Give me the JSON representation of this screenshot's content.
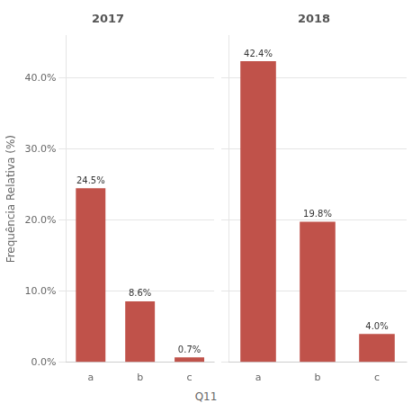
{
  "chart_data": [
    {
      "type": "bar",
      "title": "2017",
      "categories": [
        "a",
        "b",
        "c"
      ],
      "values": [
        24.5,
        8.6,
        0.7
      ],
      "value_labels": [
        "24.5%",
        "8.6%",
        "0.7%"
      ],
      "data_labels": true,
      "color": "#c0524a",
      "ylabel": "Frequência Relativa (%)",
      "xlabel": "Q11",
      "ylim": [
        0,
        46
      ],
      "yticks": [
        {
          "value": 0,
          "label": "0.0%"
        },
        {
          "value": 10,
          "label": "10.0%"
        },
        {
          "value": 20,
          "label": "20.0%"
        },
        {
          "value": 30,
          "label": "30.0%"
        },
        {
          "value": 40,
          "label": "40.0%"
        }
      ],
      "grid": true
    },
    {
      "type": "bar",
      "title": "2018",
      "categories": [
        "a",
        "b",
        "c"
      ],
      "values": [
        42.4,
        19.8,
        4.0
      ],
      "value_labels": [
        "42.4%",
        "19.8%",
        "4.0%"
      ],
      "data_labels": true,
      "color": "#c0524a",
      "ylim": [
        0,
        46
      ],
      "yticks": [
        0,
        10,
        20,
        30,
        40
      ],
      "tick_labels": "x",
      "grid": true
    }
  ]
}
